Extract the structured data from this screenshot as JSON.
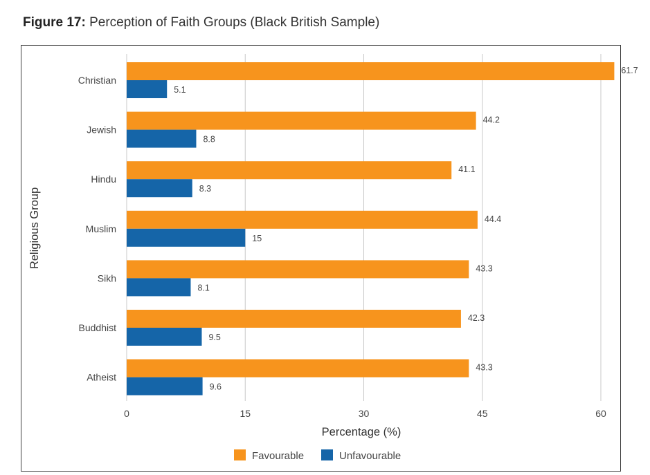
{
  "figure": {
    "number": "Figure 17:",
    "caption": "Perception of Faith Groups (Black British Sample)"
  },
  "chart_data": {
    "type": "bar",
    "orientation": "horizontal",
    "categories": [
      "Christian",
      "Jewish",
      "Hindu",
      "Muslim",
      "Sikh",
      "Buddhist",
      "Atheist"
    ],
    "series": [
      {
        "name": "Favourable",
        "color": "#f7941d",
        "values": [
          61.7,
          44.2,
          41.1,
          44.4,
          43.3,
          42.3,
          43.3
        ],
        "labels": [
          "61.7",
          "44.2",
          "41.1",
          "44.4",
          "43.3",
          "42.3",
          "43.3"
        ]
      },
      {
        "name": "Unfavourable",
        "color": "#1565a8",
        "values": [
          5.1,
          8.8,
          8.3,
          15,
          8.1,
          9.5,
          9.6
        ],
        "labels": [
          "5.1",
          "8.8",
          "8.3",
          "15",
          "8.1",
          "9.5",
          "9.6"
        ]
      }
    ],
    "xlabel": "Percentage (%)",
    "ylabel": "Religious Group",
    "xlim": [
      0,
      60
    ],
    "xticks": [
      "0",
      "15",
      "30",
      "45",
      "60"
    ],
    "grid": true,
    "legend_position": "bottom-center"
  }
}
